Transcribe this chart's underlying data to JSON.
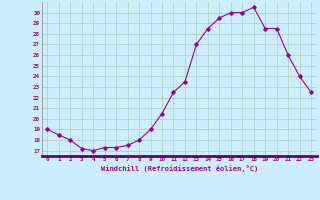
{
  "x": [
    0,
    1,
    2,
    3,
    4,
    5,
    6,
    7,
    8,
    9,
    10,
    11,
    12,
    13,
    14,
    15,
    16,
    17,
    18,
    19,
    20,
    21,
    22,
    23
  ],
  "y": [
    19,
    18.5,
    18,
    17.2,
    17,
    17.3,
    17.3,
    17.5,
    18,
    19,
    20.5,
    22.5,
    23.5,
    27,
    28.5,
    29.5,
    30,
    30,
    30.5,
    28.5,
    28.5,
    26,
    24,
    22.5
  ],
  "line_color": "#990099",
  "marker": "D",
  "marker_size": 1.8,
  "line_width": 0.8,
  "bg_color": "#cceeff",
  "grid_color": "#aaccbb",
  "xlabel": "Windchill (Refroidissement éolien,°C)",
  "xlabel_color": "#990099",
  "tick_color": "#990099",
  "ylim_min": 16.5,
  "ylim_max": 31.0,
  "yticks": [
    17,
    18,
    19,
    20,
    21,
    22,
    23,
    24,
    25,
    26,
    27,
    28,
    29,
    30
  ],
  "xlim_min": -0.5,
  "xlim_max": 23.5,
  "xticks": [
    0,
    1,
    2,
    3,
    4,
    5,
    6,
    7,
    8,
    9,
    10,
    11,
    12,
    13,
    14,
    15,
    16,
    17,
    18,
    19,
    20,
    21,
    22,
    23
  ],
  "xtick_labels": [
    "0",
    "1",
    "2",
    "3",
    "4",
    "5",
    "6",
    "7",
    "8",
    "9",
    "10",
    "11",
    "12",
    "13",
    "14",
    "15",
    "16",
    "17",
    "18",
    "19",
    "20",
    "21",
    "22",
    "23"
  ]
}
